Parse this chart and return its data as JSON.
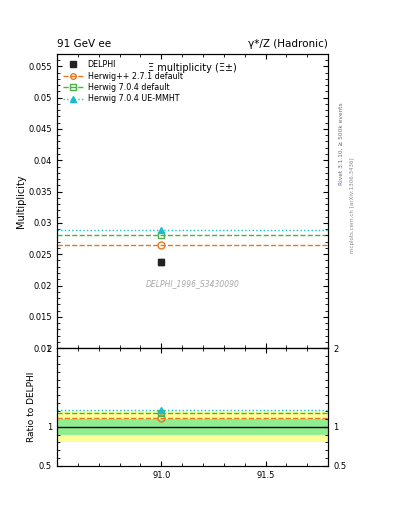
{
  "title_left": "91 GeV ee",
  "title_right": "γ*/Z (Hadronic)",
  "plot_title": "Ξ multiplicity (Ξ±)",
  "rivet_label": "Rivet 3.1.10, ≥ 500k events",
  "mcplots_label": "mcplots.cern.ch [arXiv:1306.3436]",
  "analysis_label": "DELPHI_1996_S3430090",
  "ylabel_main": "Multiplicity",
  "ylabel_ratio": "Ratio to DELPHI",
  "xlim": [
    90.5,
    91.8
  ],
  "ylim_main": [
    0.01,
    0.057
  ],
  "ylim_ratio": [
    0.5,
    2.0
  ],
  "xticks": [
    91.0,
    91.5
  ],
  "yticks_main": [
    0.01,
    0.015,
    0.02,
    0.025,
    0.03,
    0.035,
    0.04,
    0.045,
    0.05,
    0.055
  ],
  "yticks_ratio": [
    0.5,
    1.0,
    2.0
  ],
  "data_x": 91.0,
  "data_y": 0.0238,
  "data_yerr": 0.0005,
  "data_color": "#222222",
  "hw271_y": 0.0265,
  "hw271_color": "#E87722",
  "hw704d_y": 0.028,
  "hw704d_color": "#4DAF4A",
  "hw704u_y": 0.02885,
  "hw704u_color": "#17BECF",
  "ratio_hw271": 1.113,
  "ratio_hw704d": 1.176,
  "ratio_hw704u": 1.211,
  "band_1s_color": "#90EE90",
  "band_2s_color": "#FFFF99",
  "band_1s_half": 0.1,
  "band_2s_half": 0.2,
  "legend_entries": [
    "DELPHI",
    "Herwig++ 2.7.1 default",
    "Herwig 7.0.4 default",
    "Herwig 7.0.4 UE-MMHT"
  ]
}
